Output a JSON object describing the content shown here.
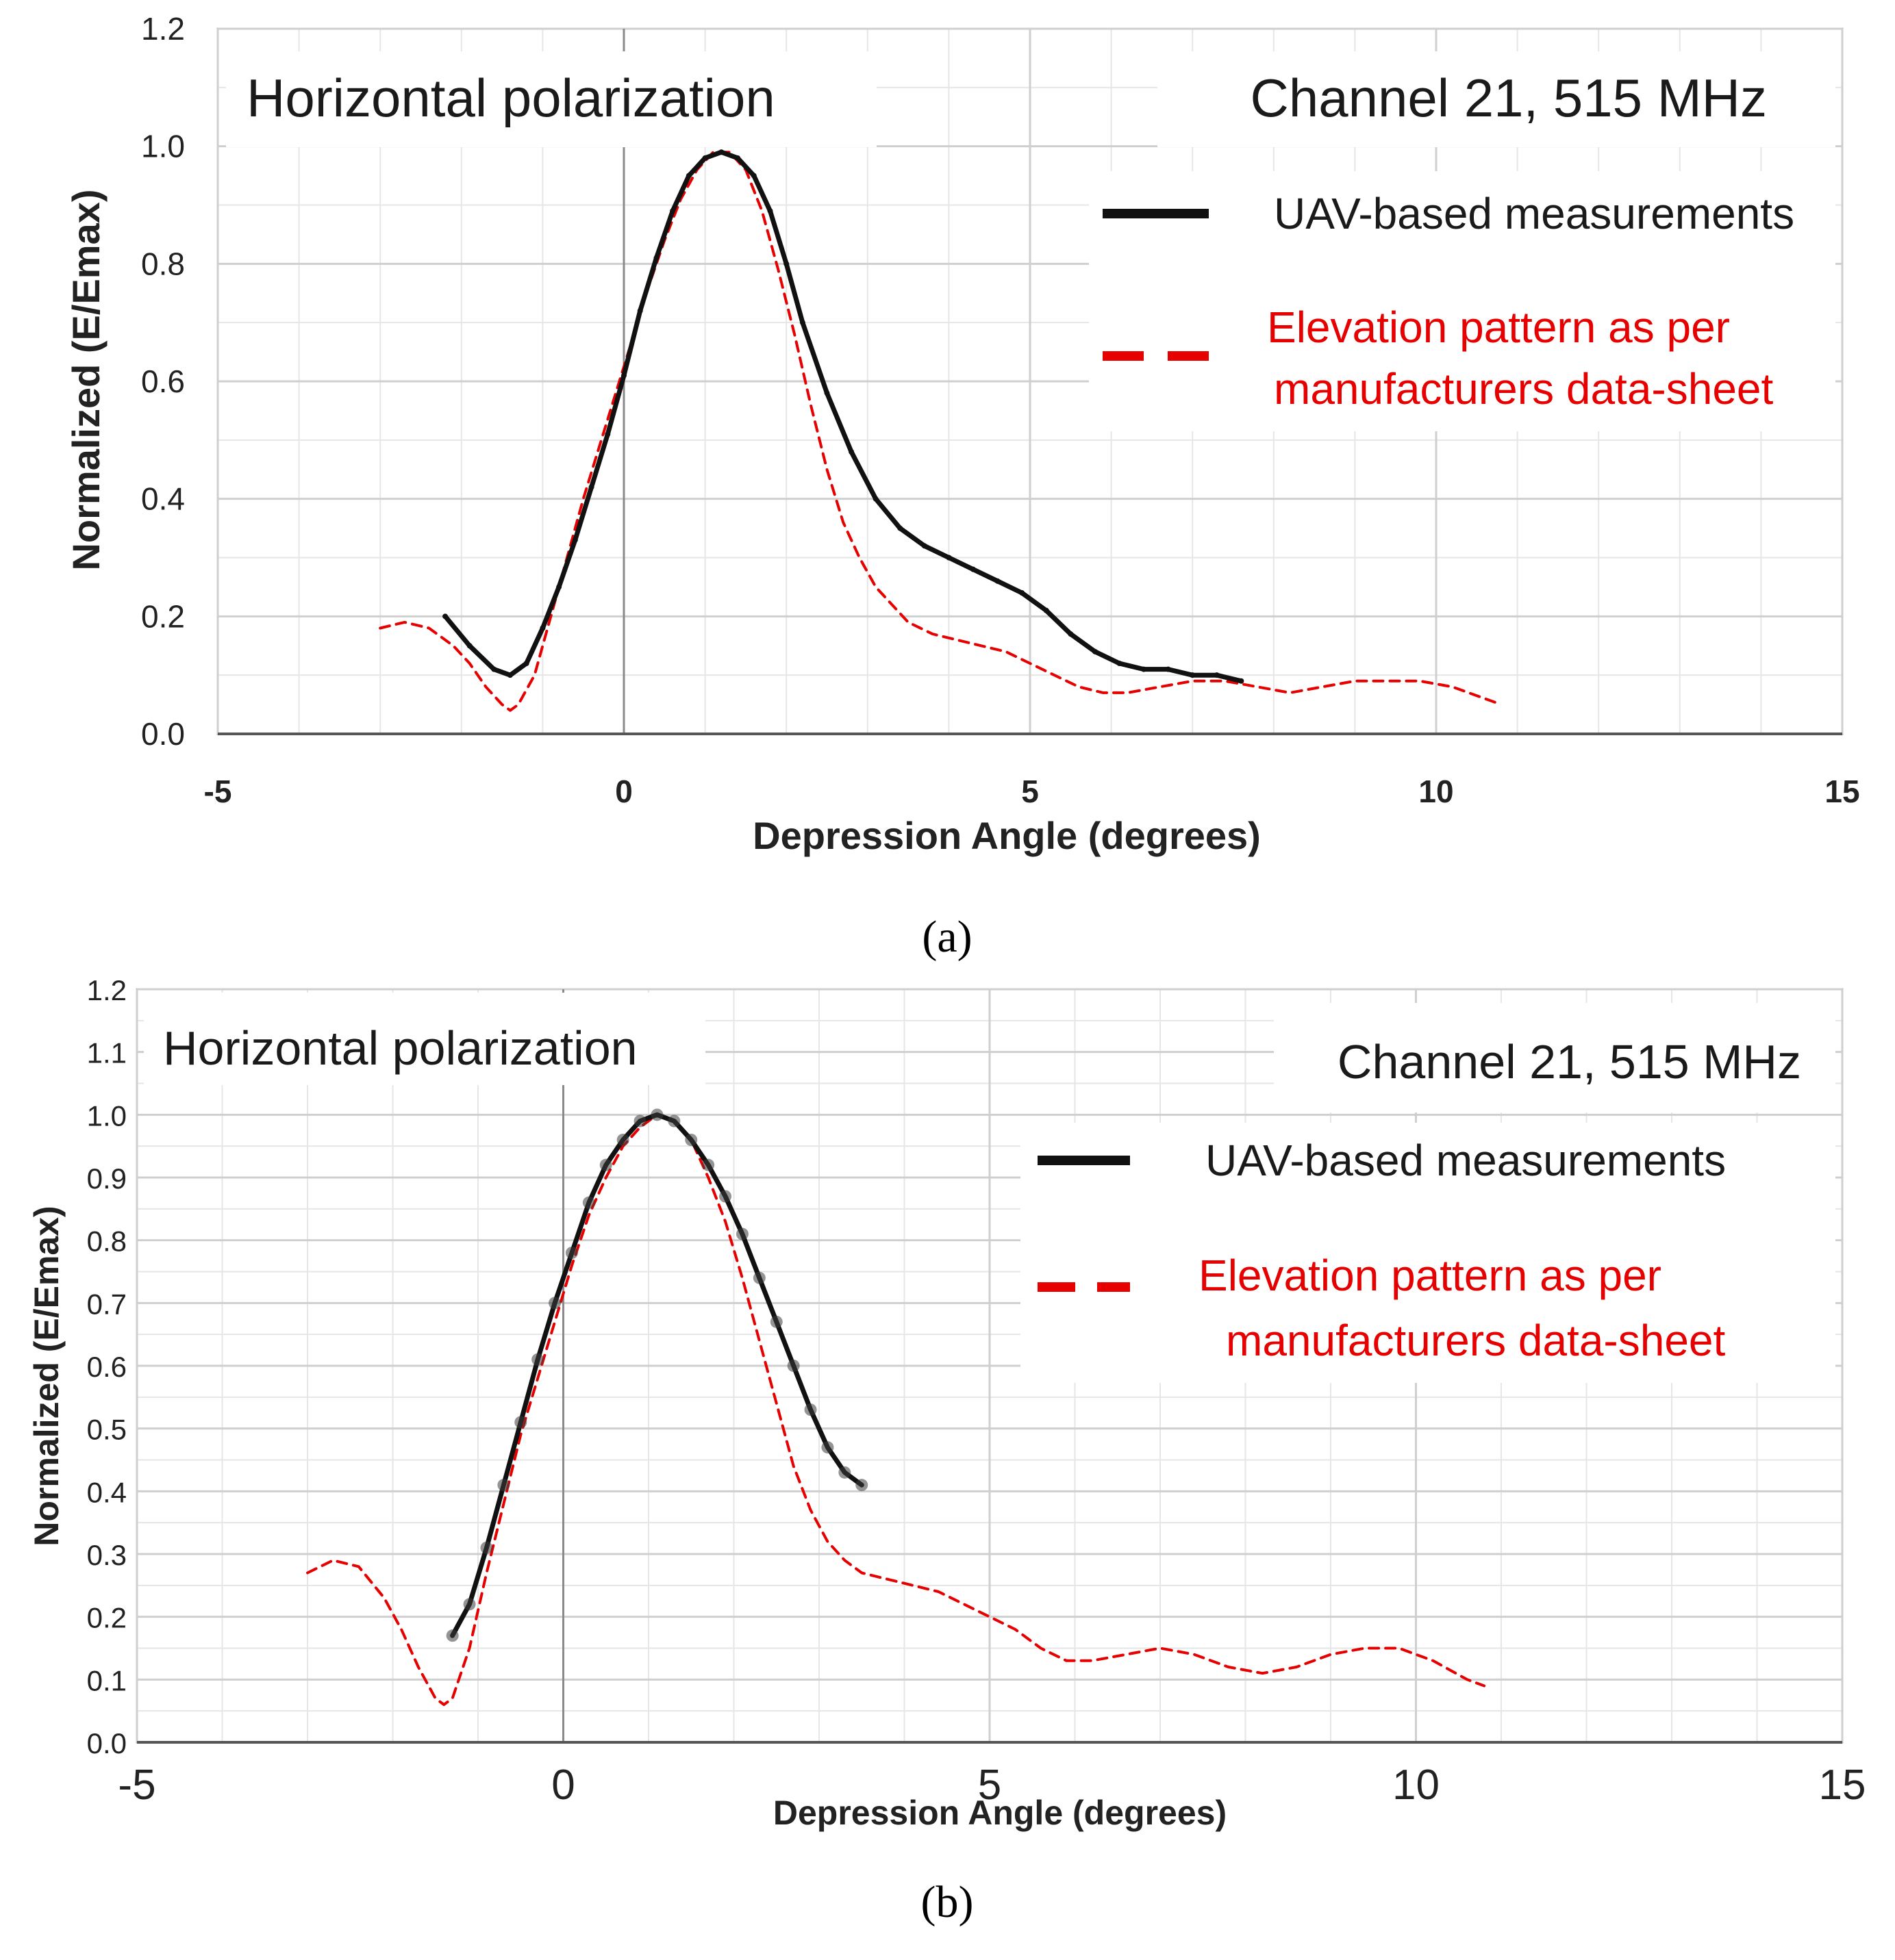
{
  "chart_data": [
    {
      "type": "line",
      "panel_label": "(a)",
      "box_left": "Horizontal polarization",
      "box_right": "Channel 21, 515 MHz",
      "xlabel": "Depression Angle (degrees)",
      "ylabel": "Normalized (E/Emax)",
      "xlim": [
        -5,
        15
      ],
      "ylim": [
        0,
        1.2
      ],
      "xticks": [
        "-5",
        "0",
        "5",
        "10",
        "15"
      ],
      "yticks": [
        "0.0",
        "0.2",
        "0.4",
        "0.6",
        "0.8",
        "1.0",
        "1.2"
      ],
      "grid": true,
      "legend_position": "top-right",
      "series": [
        {
          "name": "UAV-based measurements",
          "color": "#111111",
          "style": "solid",
          "x": [
            -2.2,
            -1.9,
            -1.6,
            -1.4,
            -1.2,
            -1.0,
            -0.8,
            -0.6,
            -0.4,
            -0.2,
            0.0,
            0.2,
            0.4,
            0.6,
            0.8,
            1.0,
            1.2,
            1.4,
            1.6,
            1.8,
            2.0,
            2.2,
            2.5,
            2.8,
            3.1,
            3.4,
            3.7,
            4.0,
            4.3,
            4.6,
            4.9,
            5.2,
            5.5,
            5.8,
            6.1,
            6.4,
            6.7,
            7.0,
            7.3,
            7.6
          ],
          "y": [
            0.2,
            0.15,
            0.11,
            0.1,
            0.12,
            0.18,
            0.25,
            0.33,
            0.42,
            0.51,
            0.61,
            0.72,
            0.81,
            0.89,
            0.95,
            0.98,
            0.99,
            0.98,
            0.95,
            0.89,
            0.8,
            0.7,
            0.58,
            0.48,
            0.4,
            0.35,
            0.32,
            0.3,
            0.28,
            0.26,
            0.24,
            0.21,
            0.17,
            0.14,
            0.12,
            0.11,
            0.11,
            0.1,
            0.1,
            0.09
          ]
        },
        {
          "name": "Elevation pattern as per manufacturers data-sheet",
          "color": "#e60000",
          "style": "dashed",
          "x": [
            -3.0,
            -2.7,
            -2.4,
            -2.1,
            -1.9,
            -1.7,
            -1.5,
            -1.4,
            -1.3,
            -1.1,
            -0.9,
            -0.7,
            -0.5,
            -0.3,
            -0.1,
            0.1,
            0.3,
            0.5,
            0.7,
            0.9,
            1.1,
            1.3,
            1.5,
            1.7,
            1.9,
            2.1,
            2.3,
            2.5,
            2.7,
            2.9,
            3.1,
            3.3,
            3.5,
            3.8,
            4.1,
            4.4,
            4.7,
            5.0,
            5.3,
            5.6,
            5.9,
            6.2,
            6.6,
            7.0,
            7.4,
            7.8,
            8.2,
            8.6,
            9.0,
            9.4,
            9.8,
            10.2,
            10.6,
            10.8
          ],
          "y": [
            0.18,
            0.19,
            0.18,
            0.15,
            0.12,
            0.08,
            0.05,
            0.04,
            0.05,
            0.1,
            0.2,
            0.3,
            0.4,
            0.49,
            0.58,
            0.67,
            0.76,
            0.84,
            0.91,
            0.96,
            0.99,
            0.99,
            0.96,
            0.89,
            0.79,
            0.68,
            0.56,
            0.45,
            0.36,
            0.3,
            0.25,
            0.22,
            0.19,
            0.17,
            0.16,
            0.15,
            0.14,
            0.12,
            0.1,
            0.08,
            0.07,
            0.07,
            0.08,
            0.09,
            0.09,
            0.08,
            0.07,
            0.08,
            0.09,
            0.09,
            0.09,
            0.08,
            0.06,
            0.05
          ]
        }
      ]
    },
    {
      "type": "line",
      "panel_label": "(b)",
      "box_left": "Horizontal polarization",
      "box_right": "Channel 21, 515 MHz",
      "xlabel": "Depression Angle (degrees)",
      "ylabel": "Normalized (E/Emax)",
      "xlim": [
        -5,
        15
      ],
      "ylim": [
        0,
        1.2
      ],
      "xticks": [
        "-5",
        "0",
        "5",
        "10",
        "15"
      ],
      "yticks": [
        "0.0",
        "0.1",
        "0.2",
        "0.3",
        "0.4",
        "0.5",
        "0.6",
        "0.7",
        "0.8",
        "0.9",
        "1.0",
        "1.1",
        "1.2"
      ],
      "grid": true,
      "legend_position": "top-right",
      "series": [
        {
          "name": "UAV-based measurements",
          "color": "#111111",
          "style": "solid",
          "x": [
            -1.3,
            -1.1,
            -0.9,
            -0.7,
            -0.5,
            -0.3,
            -0.1,
            0.1,
            0.3,
            0.5,
            0.7,
            0.9,
            1.1,
            1.3,
            1.5,
            1.7,
            1.9,
            2.1,
            2.3,
            2.5,
            2.7,
            2.9,
            3.1,
            3.3,
            3.5
          ],
          "y": [
            0.17,
            0.22,
            0.31,
            0.41,
            0.51,
            0.61,
            0.7,
            0.78,
            0.86,
            0.92,
            0.96,
            0.99,
            1.0,
            0.99,
            0.96,
            0.92,
            0.87,
            0.81,
            0.74,
            0.67,
            0.6,
            0.53,
            0.47,
            0.43,
            0.41
          ]
        },
        {
          "name": "Elevation pattern as per manufacturers data-sheet",
          "color": "#e60000",
          "style": "dashed",
          "x": [
            -3.0,
            -2.7,
            -2.4,
            -2.1,
            -1.9,
            -1.7,
            -1.5,
            -1.4,
            -1.3,
            -1.1,
            -0.9,
            -0.7,
            -0.5,
            -0.3,
            -0.1,
            0.1,
            0.3,
            0.5,
            0.7,
            0.9,
            1.1,
            1.3,
            1.5,
            1.7,
            1.9,
            2.1,
            2.3,
            2.5,
            2.7,
            2.9,
            3.1,
            3.3,
            3.5,
            3.8,
            4.1,
            4.4,
            4.7,
            5.0,
            5.3,
            5.6,
            5.9,
            6.2,
            6.6,
            7.0,
            7.4,
            7.8,
            8.2,
            8.6,
            9.0,
            9.4,
            9.8,
            10.2,
            10.6,
            10.8
          ],
          "y": [
            0.27,
            0.29,
            0.28,
            0.23,
            0.18,
            0.12,
            0.07,
            0.06,
            0.07,
            0.15,
            0.27,
            0.38,
            0.49,
            0.58,
            0.67,
            0.76,
            0.84,
            0.9,
            0.95,
            0.98,
            1.0,
            0.99,
            0.96,
            0.9,
            0.83,
            0.74,
            0.64,
            0.54,
            0.44,
            0.37,
            0.32,
            0.29,
            0.27,
            0.26,
            0.25,
            0.24,
            0.22,
            0.2,
            0.18,
            0.15,
            0.13,
            0.13,
            0.14,
            0.15,
            0.14,
            0.12,
            0.11,
            0.12,
            0.14,
            0.15,
            0.15,
            0.13,
            0.1,
            0.09
          ]
        }
      ]
    }
  ]
}
